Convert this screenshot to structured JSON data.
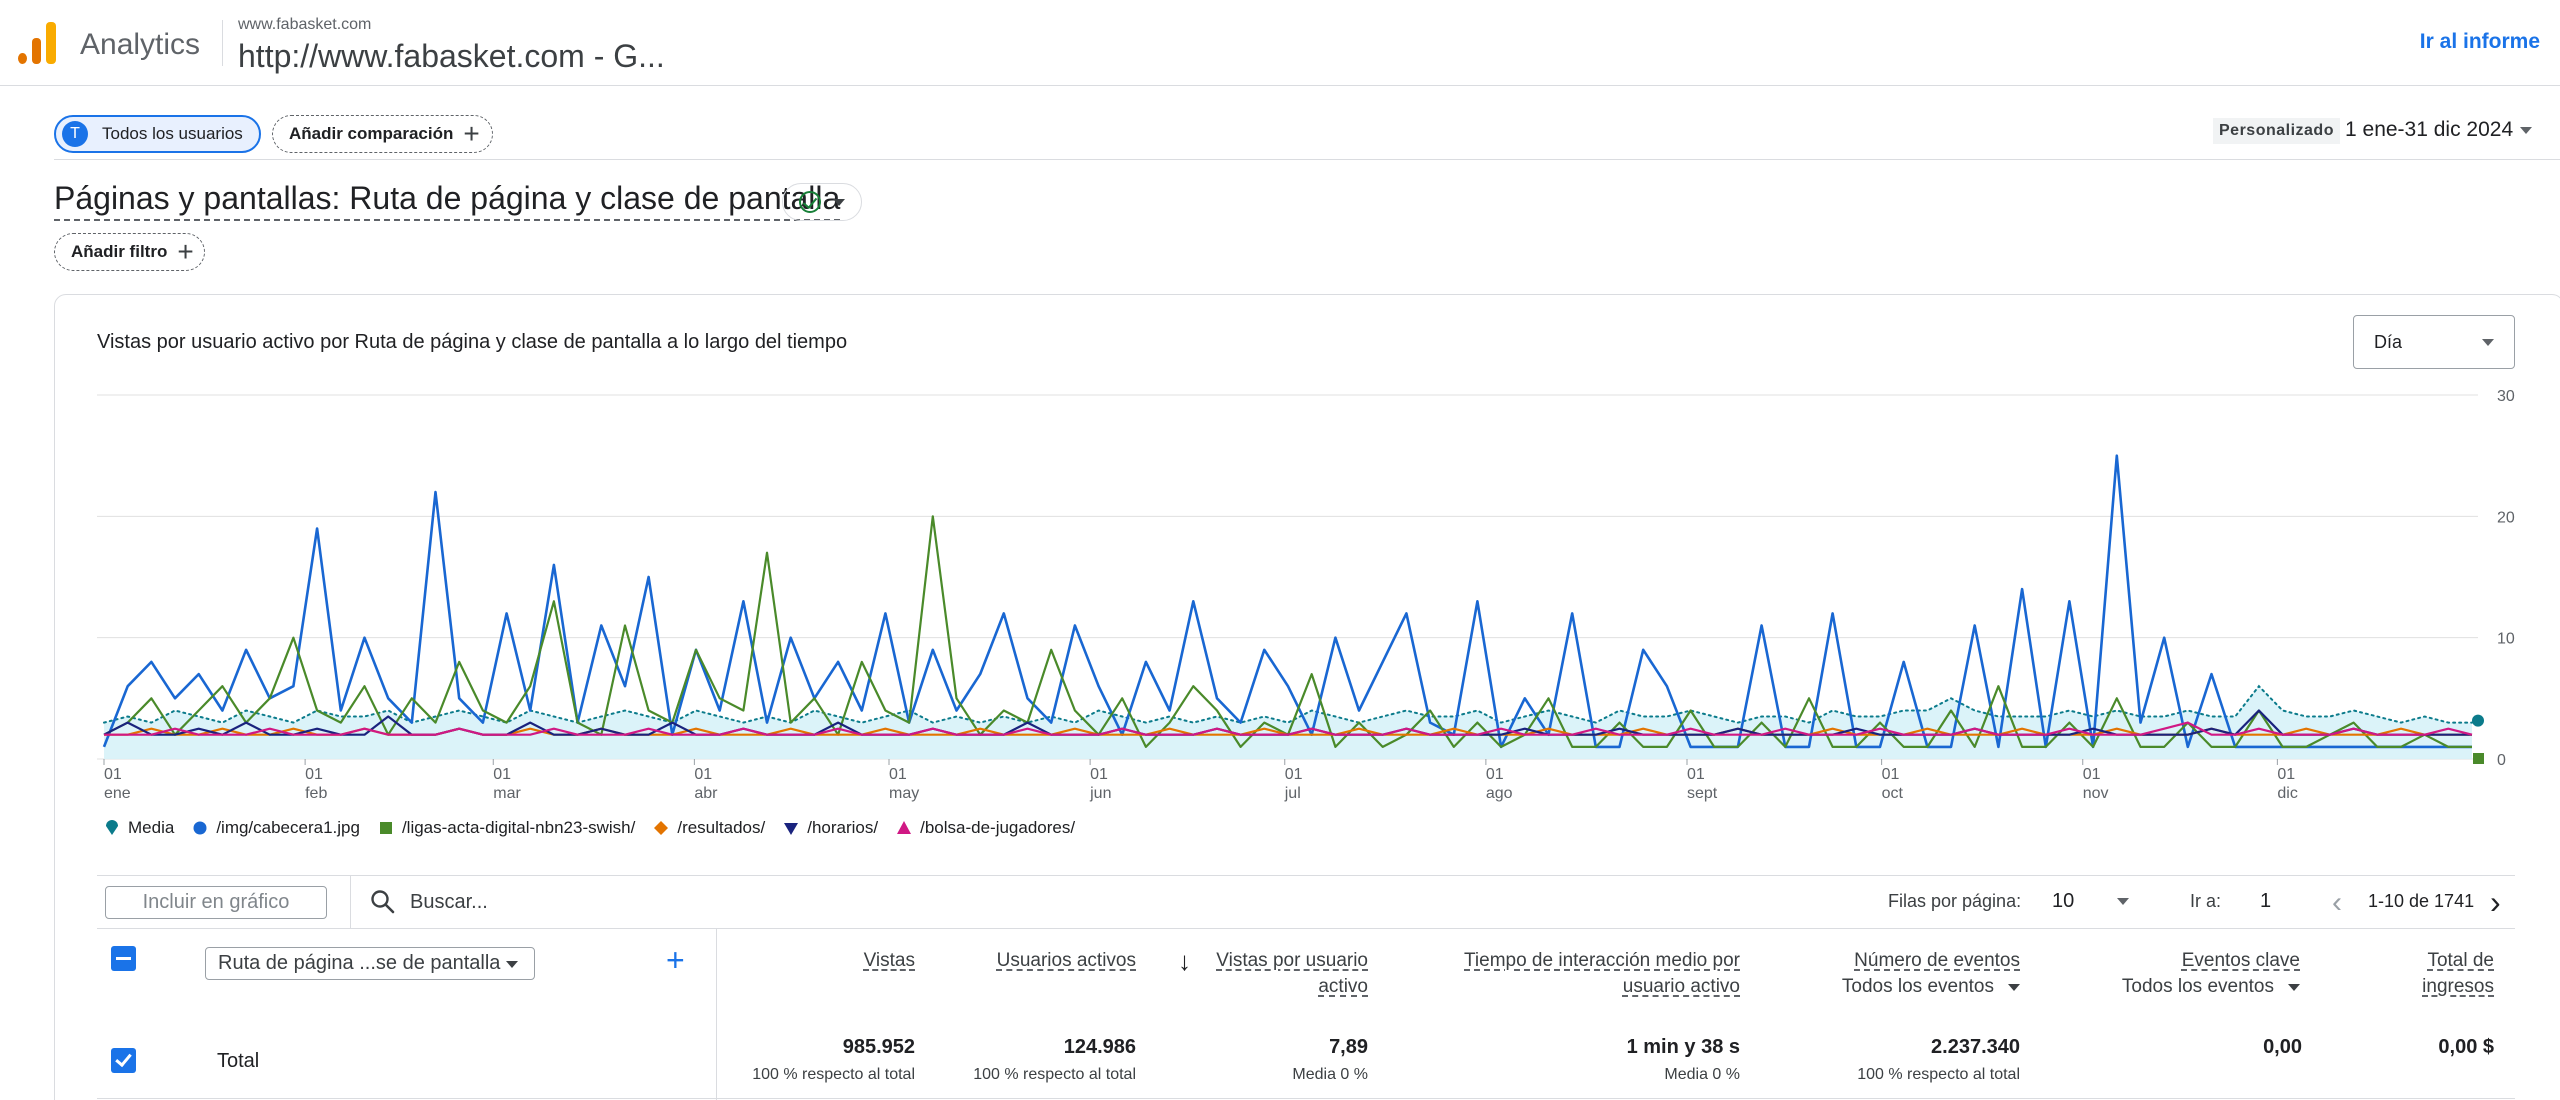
{
  "app": {
    "brand": "Analytics",
    "account_small": "www.fabasket.com",
    "account_big": "http://www.fabasket.com - G...",
    "go_to_report": "Ir al informe"
  },
  "comparison": {
    "user_chip": "Todos los usuarios",
    "user_avatar": "T",
    "add_comparison": "Añadir comparación"
  },
  "date": {
    "badge": "Personalizado",
    "range": "1 ene-31 dic 2024"
  },
  "page": {
    "title": "Páginas y pantallas: Ruta de página y clase de pantalla",
    "add_filter": "Añadir filtro"
  },
  "chart": {
    "title": "Vistas por usuario activo por Ruta de página y clase de pantalla a lo largo del tiempo",
    "granularity": "Día"
  },
  "chart_data": {
    "type": "line",
    "ylim": [
      0,
      30
    ],
    "y_ticks": [
      "30",
      "20",
      "10",
      "0"
    ],
    "x_ticks": [
      {
        "day": "01",
        "month": "ene"
      },
      {
        "day": "01",
        "month": "feb"
      },
      {
        "day": "01",
        "month": "mar"
      },
      {
        "day": "01",
        "month": "abr"
      },
      {
        "day": "01",
        "month": "may"
      },
      {
        "day": "01",
        "month": "jun"
      },
      {
        "day": "01",
        "month": "jul"
      },
      {
        "day": "01",
        "month": "ago"
      },
      {
        "day": "01",
        "month": "sept"
      },
      {
        "day": "01",
        "month": "oct"
      },
      {
        "day": "01",
        "month": "nov"
      },
      {
        "day": "01",
        "month": "dic"
      }
    ],
    "series": [
      {
        "name": "Media",
        "color": "#0b7b8b",
        "style": "dotted",
        "marker": "pin",
        "values": [
          3,
          3.5,
          3,
          4,
          3.5,
          3,
          4,
          3.5,
          3,
          4,
          3.5,
          3.5,
          4,
          3,
          3.5,
          4,
          3.5,
          3,
          4,
          3.5,
          3,
          3.5,
          4,
          3.5,
          3,
          4,
          3.5,
          3,
          3.5,
          3,
          4,
          3.5,
          3,
          3.5,
          4,
          3,
          3.5,
          3,
          3.5,
          3,
          3.5,
          3,
          4,
          3.5,
          3,
          3.5,
          3,
          3.5,
          3,
          3.5,
          3,
          4,
          3.5,
          3,
          3.5,
          4,
          3.5,
          3.5,
          4,
          3,
          3.5,
          4,
          3.5,
          3,
          4,
          3.5,
          3.5,
          4,
          3.5,
          3,
          3.5,
          3.5,
          3,
          4,
          3.5,
          3.5,
          4,
          4,
          5,
          4,
          3.5,
          3.5,
          3.5,
          4,
          3.5,
          4,
          3.5,
          3.5,
          4,
          3.5,
          3.5,
          6,
          4,
          3.5,
          3.5,
          4,
          3.5,
          3,
          3.5,
          3,
          3
        ]
      },
      {
        "name": "/img/cabecera1.jpg",
        "color": "#1967d2",
        "style": "solid",
        "marker": "circle",
        "values": [
          1,
          6,
          8,
          5,
          7,
          4,
          9,
          5,
          6,
          19,
          4,
          10,
          5,
          3,
          22,
          5,
          3,
          12,
          4,
          16,
          3,
          11,
          6,
          15,
          2,
          9,
          4,
          13,
          3,
          10,
          5,
          8,
          4,
          12,
          3,
          9,
          4,
          7,
          12,
          5,
          3,
          11,
          6,
          2,
          8,
          4,
          13,
          5,
          3,
          9,
          6,
          2,
          10,
          4,
          8,
          12,
          3,
          2,
          13,
          1,
          5,
          2,
          12,
          1,
          1,
          9,
          6,
          1,
          1,
          1,
          11,
          1,
          1,
          12,
          1,
          1,
          8,
          1,
          1,
          11,
          1,
          14,
          1,
          13,
          1,
          25,
          3,
          10,
          1,
          7,
          1,
          1,
          1,
          1,
          1,
          1,
          1,
          1,
          1,
          1,
          1
        ]
      },
      {
        "name": "/ligas-acta-digital-nbn23-swish/",
        "color": "#4a8a2a",
        "style": "solid",
        "marker": "square",
        "values": [
          2,
          3,
          5,
          2,
          4,
          6,
          3,
          5,
          10,
          4,
          3,
          6,
          2,
          5,
          3,
          8,
          4,
          3,
          6,
          13,
          3,
          2,
          11,
          4,
          3,
          9,
          5,
          4,
          17,
          3,
          5,
          2,
          8,
          4,
          3,
          20,
          5,
          2,
          4,
          3,
          9,
          4,
          2,
          5,
          1,
          3,
          6,
          4,
          1,
          3,
          2,
          7,
          1,
          3,
          1,
          2,
          4,
          1,
          3,
          1,
          2,
          5,
          1,
          1,
          3,
          1,
          1,
          4,
          1,
          1,
          3,
          1,
          5,
          1,
          1,
          3,
          1,
          1,
          4,
          1,
          6,
          1,
          1,
          3,
          1,
          5,
          1,
          1,
          3,
          1,
          1,
          4,
          1,
          1,
          2,
          3,
          1,
          1,
          2,
          1,
          1
        ]
      },
      {
        "name": "/resultados/",
        "color": "#e37400",
        "style": "solid",
        "marker": "diamond",
        "values": [
          2,
          2,
          2.5,
          2,
          2,
          2.5,
          2,
          2,
          2.5,
          2,
          2,
          2.5,
          2,
          2,
          2,
          2.5,
          2,
          2,
          2.5,
          2,
          2,
          2.5,
          2,
          2,
          2,
          2.5,
          2,
          2,
          2,
          2.5,
          2,
          2,
          2,
          2.5,
          2,
          2,
          2,
          2.5,
          2,
          2,
          2,
          2.5,
          2,
          2,
          2,
          2.5,
          2,
          2,
          2,
          2.5,
          2,
          2,
          2,
          2.5,
          2,
          2,
          2,
          2.5,
          2,
          2,
          2,
          2.5,
          2,
          2,
          2,
          2.5,
          2,
          2,
          2,
          2.5,
          2,
          2,
          2,
          2.5,
          2,
          2,
          2,
          2.5,
          2,
          2,
          2,
          2.5,
          2,
          2,
          2,
          2.5,
          2,
          2,
          2,
          2.5,
          2,
          2,
          2,
          2.5,
          2,
          2,
          2,
          2.5,
          2,
          2,
          2
        ]
      },
      {
        "name": "/horarios/",
        "color": "#1a237e",
        "style": "solid",
        "marker": "triangle-down",
        "values": [
          2,
          3,
          2,
          2,
          2.5,
          2,
          3,
          2,
          2,
          2.5,
          2,
          2,
          3.5,
          2,
          2,
          2.5,
          2,
          2,
          3,
          2,
          2,
          2.5,
          2,
          2,
          3,
          2,
          2,
          2.5,
          2,
          2,
          2,
          3,
          2,
          2,
          2,
          2.5,
          2,
          2,
          2,
          3,
          2,
          2,
          2,
          2.5,
          2,
          2,
          2,
          2.5,
          2,
          2,
          2,
          2.5,
          2,
          2,
          2,
          2.5,
          2,
          2,
          2,
          2,
          2.5,
          2,
          2,
          2,
          2.5,
          2,
          2,
          2,
          2,
          2.5,
          2,
          2,
          2,
          2,
          2.5,
          2,
          2,
          2,
          2,
          2.5,
          2,
          2,
          2,
          2,
          2.5,
          2,
          2,
          2,
          2,
          2.5,
          2,
          4,
          2,
          2,
          2,
          2.5,
          2,
          2,
          2,
          2,
          2
        ]
      },
      {
        "name": "/bolsa-de-jugadores/",
        "color": "#d01884",
        "style": "solid",
        "marker": "triangle-up",
        "values": [
          2,
          2,
          2,
          2.5,
          2,
          2,
          2,
          2.5,
          2,
          2,
          2,
          2.5,
          2,
          2,
          2,
          2.5,
          2,
          2,
          2,
          2.5,
          2,
          2,
          2,
          2.5,
          2,
          2,
          2,
          2.5,
          2,
          2,
          2,
          2.5,
          2,
          2,
          2,
          2.5,
          2,
          2,
          2,
          2.5,
          2,
          2,
          2,
          2.5,
          2,
          2,
          2,
          2.5,
          2,
          2,
          2,
          2.5,
          2,
          2,
          2,
          2.5,
          2,
          2,
          2,
          2.5,
          2,
          2,
          2,
          2.5,
          2,
          2,
          2,
          2.5,
          2,
          2,
          2,
          2.5,
          2,
          2,
          2,
          2.5,
          2,
          2,
          2,
          2.5,
          2,
          2,
          2,
          2.5,
          2,
          2,
          2,
          2.5,
          3,
          2,
          2,
          2.5,
          2,
          2,
          2,
          2.5,
          2,
          2,
          2,
          2.5,
          2
        ]
      }
    ]
  },
  "legend_items": [
    "Media",
    "/img/cabecera1.jpg",
    "/ligas-acta-digital-nbn23-swish/",
    "/resultados/",
    "/horarios/",
    "/bolsa-de-jugadores/"
  ],
  "table_toolbar": {
    "include_button": "Incluir en gráfico",
    "search_placeholder": "Buscar...",
    "rows_label": "Filas por página:",
    "rows_value": "10",
    "goto_label": "Ir a:",
    "goto_value": "1",
    "pager_text": "1-10 de 1741"
  },
  "table": {
    "dimension": "Ruta de página ...se de pantalla",
    "columns": [
      {
        "line1": "Vistas",
        "line2": ""
      },
      {
        "line1": "Usuarios activos",
        "line2": ""
      },
      {
        "line1": "Vistas por usuario",
        "line2": "activo"
      },
      {
        "line1": "Tiempo de interacción medio por",
        "line2": "usuario activo"
      },
      {
        "line1": "Número de eventos",
        "sub": "Todos los eventos"
      },
      {
        "line1": "Eventos clave",
        "sub": "Todos los eventos"
      },
      {
        "line1": "Total de",
        "line2": "ingresos"
      }
    ],
    "total_row": {
      "label": "Total",
      "values": [
        "985.952",
        "124.986",
        "7,89",
        "1 min y 38 s",
        "2.237.340",
        "0,00",
        "0,00 $"
      ],
      "subs": [
        "100 % respecto al total",
        "100 % respecto al total",
        "Media 0 %",
        "Media 0 %",
        "100 % respecto al total",
        "",
        ""
      ]
    }
  }
}
